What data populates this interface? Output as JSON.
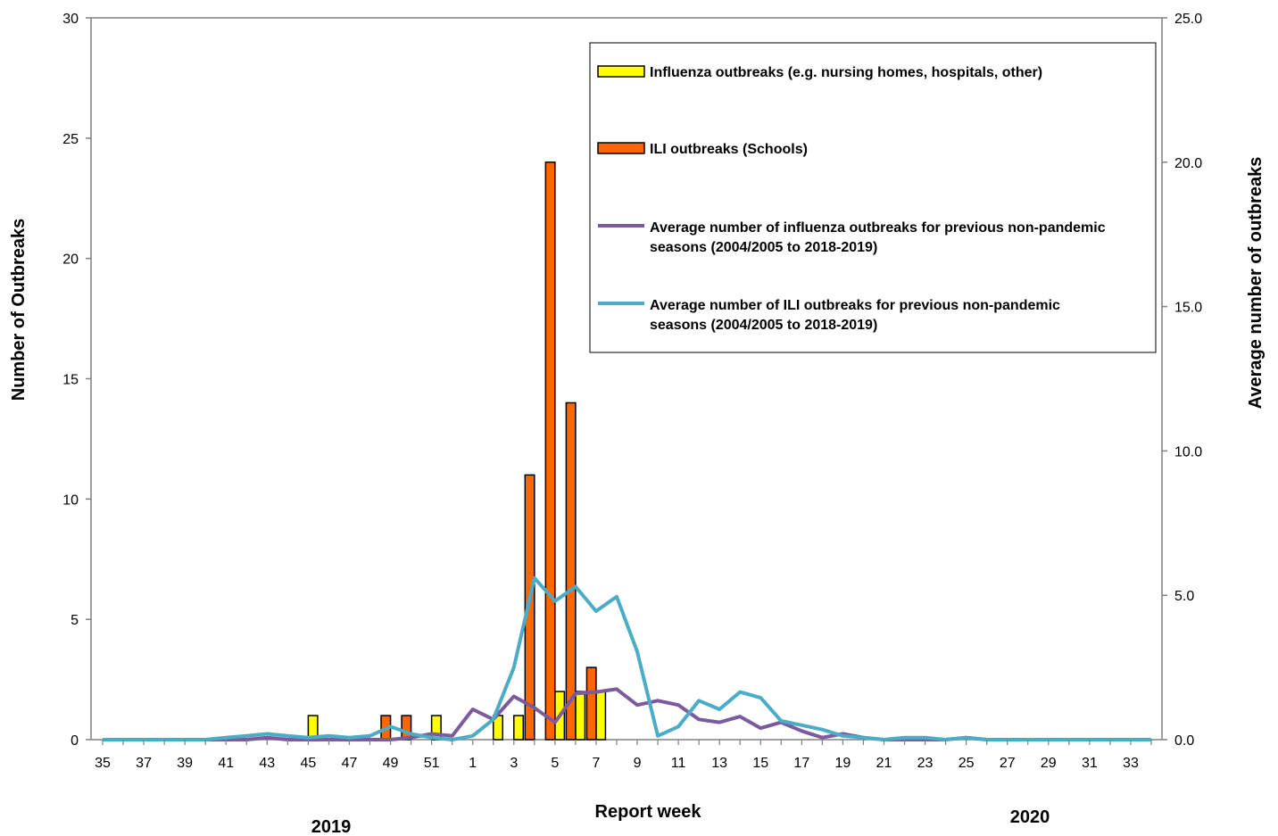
{
  "chart_data": {
    "type": "bar",
    "xlabel": "Report week",
    "ylabel_left": "Number of Outbreaks",
    "ylabel_right": "Average number of outbreaks",
    "ylim_left": [
      0,
      30
    ],
    "ylim_right": [
      0,
      25
    ],
    "left_ticks": [
      "0",
      "5",
      "10",
      "15",
      "20",
      "25",
      "30"
    ],
    "right_ticks": [
      "0.0",
      "5.0",
      "10.0",
      "15.0",
      "20.0",
      "25.0"
    ],
    "grid": false,
    "legend_position": "top-right",
    "year_labels": [
      "2019",
      "2020"
    ],
    "x": [
      35,
      36,
      37,
      38,
      39,
      40,
      41,
      42,
      43,
      44,
      45,
      46,
      47,
      48,
      49,
      50,
      51,
      52,
      1,
      2,
      3,
      4,
      5,
      6,
      7,
      8,
      9,
      10,
      11,
      12,
      13,
      14,
      15,
      16,
      17,
      18,
      19,
      20,
      21,
      22,
      23,
      24,
      25,
      26,
      27,
      28,
      29,
      30,
      31,
      32,
      33,
      34
    ],
    "x_tick_labels": [
      "35",
      "37",
      "39",
      "41",
      "43",
      "45",
      "47",
      "49",
      "51",
      "1",
      "3",
      "5",
      "7",
      "9",
      "11",
      "13",
      "15",
      "17",
      "19",
      "21",
      "23",
      "25",
      "27",
      "29",
      "31",
      "33"
    ],
    "series": [
      {
        "name": "Influenza outbreaks (e.g. nursing homes, hospitals, other)",
        "kind": "bar",
        "axis": "left",
        "color": "#FFFF00",
        "values": [
          0,
          0,
          0,
          0,
          0,
          0,
          0,
          0,
          0,
          0,
          1,
          0,
          0,
          0,
          0,
          0,
          1,
          0,
          0,
          1,
          1,
          0,
          2,
          2,
          2,
          0,
          0,
          0,
          0,
          0,
          0,
          0,
          0,
          0,
          0,
          0,
          0,
          0,
          0,
          0,
          0,
          0,
          0,
          0,
          0,
          0,
          0,
          0,
          0,
          0,
          0,
          0
        ]
      },
      {
        "name": "ILI outbreaks (Schools)",
        "kind": "bar",
        "axis": "left",
        "color": "#FF6600",
        "values": [
          0,
          0,
          0,
          0,
          0,
          0,
          0,
          0,
          0,
          0,
          0,
          0,
          0,
          0,
          1,
          1,
          0,
          0,
          0,
          0,
          0,
          11,
          24,
          14,
          3,
          0,
          0,
          0,
          0,
          0,
          0,
          0,
          0,
          0,
          0,
          0,
          0,
          0,
          0,
          0,
          0,
          0,
          0,
          0,
          0,
          0,
          0,
          0,
          0,
          0,
          0,
          0
        ]
      },
      {
        "name": "Average number of influenza outbreaks for previous non-pandemic seasons (2004/2005 to 2018-2019)",
        "kind": "line",
        "axis": "right",
        "color": "#7B5A9E",
        "values": [
          0,
          0,
          0,
          0,
          0,
          0,
          0,
          0,
          0.07,
          0,
          0,
          0,
          0,
          0,
          0,
          0.07,
          0.2,
          0.13,
          1.05,
          0.7,
          1.5,
          1.1,
          0.6,
          1.6,
          1.65,
          1.75,
          1.2,
          1.35,
          1.2,
          0.7,
          0.6,
          0.8,
          0.4,
          0.6,
          0.3,
          0.07,
          0.2,
          0.07,
          0,
          0,
          0,
          0,
          0.07,
          0,
          0,
          0,
          0,
          0,
          0,
          0,
          0,
          0
        ]
      },
      {
        "name": "Average number of ILI outbreaks for previous non-pandemic seasons (2004/2005 to 2018-2019)",
        "kind": "line",
        "axis": "right",
        "color": "#4BACC6",
        "values": [
          0,
          0,
          0,
          0,
          0,
          0,
          0.07,
          0.13,
          0.2,
          0.13,
          0.07,
          0.13,
          0.07,
          0.13,
          0.45,
          0.2,
          0.07,
          0,
          0.13,
          0.7,
          2.5,
          5.6,
          4.8,
          5.3,
          4.45,
          4.95,
          3.05,
          0.13,
          0.45,
          1.35,
          1.05,
          1.65,
          1.45,
          0.65,
          0.5,
          0.35,
          0.13,
          0.07,
          0,
          0.07,
          0.07,
          0,
          0.07,
          0,
          0,
          0,
          0,
          0,
          0,
          0,
          0,
          0
        ]
      }
    ]
  }
}
